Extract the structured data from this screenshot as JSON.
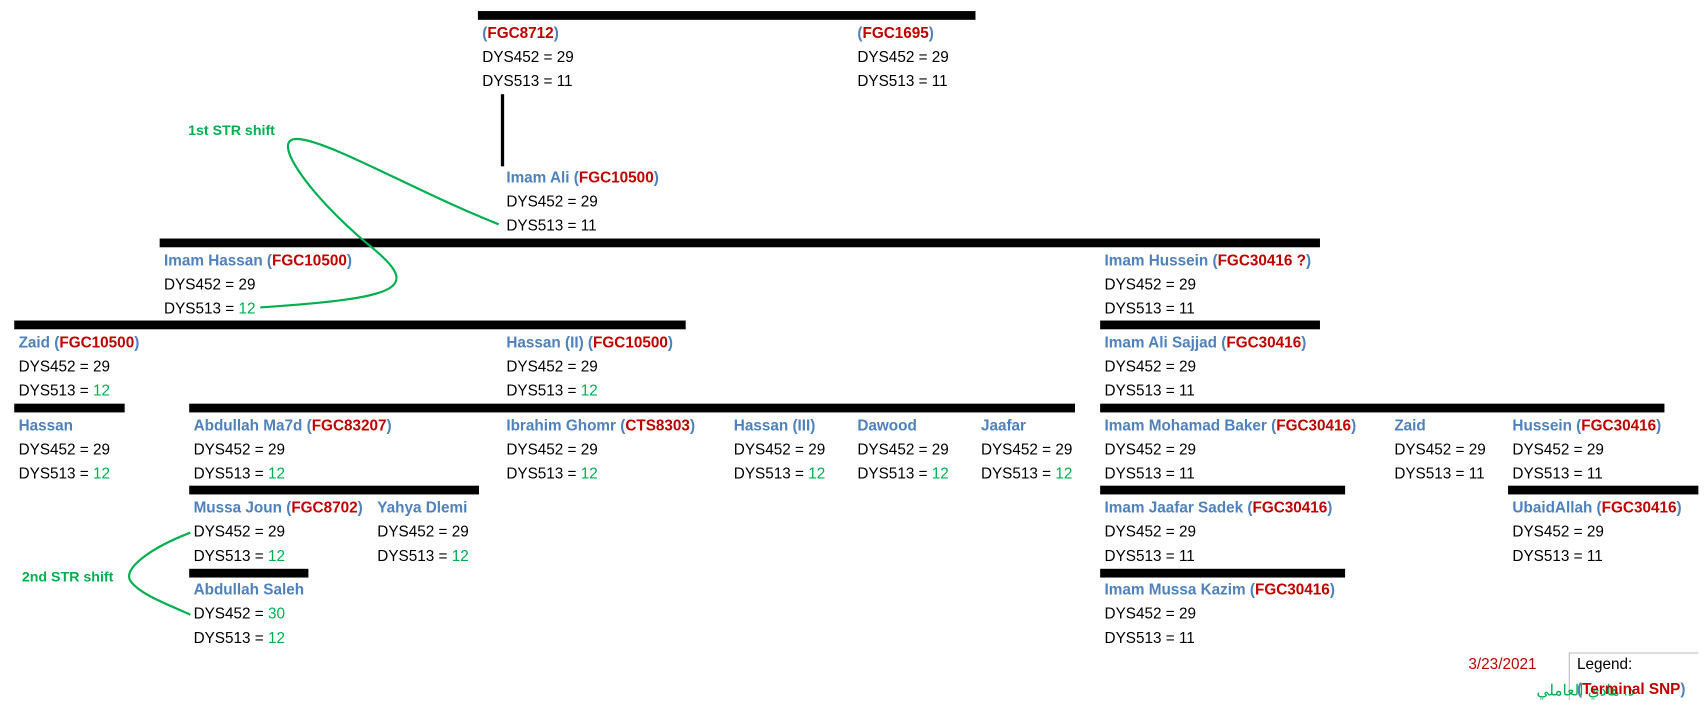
{
  "annotations": [
    "1st STR shift",
    "2nd STR shift"
  ],
  "markers": [
    "DYS452 =",
    "DYS513 ="
  ],
  "colors": {
    "name": "#4f81bd",
    "snp": "#c00000",
    "shifted": "#00b050",
    "value": "#000000"
  },
  "nodes": [
    {
      "label": [
        "(",
        "FGC8712",
        ")"
      ],
      "dys452": 29,
      "dys513": 11,
      "shifted": []
    },
    {
      "label": [
        "(",
        "FGC1695",
        ")"
      ],
      "dys452": 29,
      "dys513": 11,
      "shifted": []
    },
    {
      "label": [
        "Imam Ali (",
        "FGC10500",
        ")"
      ],
      "dys452": 29,
      "dys513": 11,
      "shifted": []
    },
    {
      "label": [
        "Imam Hassan (",
        "FGC10500",
        ")"
      ],
      "dys452": 29,
      "dys513": 12,
      "shifted": [
        "dys513"
      ]
    },
    {
      "label": [
        "Imam Hussein (",
        "FGC30416 ?",
        ")"
      ],
      "dys452": 29,
      "dys513": 11,
      "shifted": []
    },
    {
      "label": [
        "Zaid (",
        "FGC10500",
        ")"
      ],
      "dys452": 29,
      "dys513": 12,
      "shifted": [
        "dys513"
      ]
    },
    {
      "label": [
        "Hassan (II) (",
        "FGC10500",
        ")"
      ],
      "dys452": 29,
      "dys513": 12,
      "shifted": [
        "dys513"
      ]
    },
    {
      "label": [
        "Imam Ali Sajjad (",
        "FGC30416",
        ")"
      ],
      "dys452": 29,
      "dys513": 11,
      "shifted": []
    },
    {
      "label": [
        "Hassan"
      ],
      "dys452": 29,
      "dys513": 12,
      "shifted": [
        "dys513"
      ]
    },
    {
      "label": [
        "Abdullah Ma7d (",
        "FGC83207",
        ")"
      ],
      "dys452": 29,
      "dys513": 12,
      "shifted": [
        "dys513"
      ]
    },
    {
      "label": [
        "Ibrahim Ghomr (",
        "CTS8303",
        ")"
      ],
      "dys452": 29,
      "dys513": 12,
      "shifted": [
        "dys513"
      ]
    },
    {
      "label": [
        "Hassan (III)"
      ],
      "dys452": 29,
      "dys513": 12,
      "shifted": [
        "dys513"
      ]
    },
    {
      "label": [
        "Dawood"
      ],
      "dys452": 29,
      "dys513": 12,
      "shifted": [
        "dys513"
      ]
    },
    {
      "label": [
        "Jaafar"
      ],
      "dys452": 29,
      "dys513": 12,
      "shifted": [
        "dys513"
      ]
    },
    {
      "label": [
        "Imam Mohamad Baker (",
        "FGC30416",
        ")"
      ],
      "dys452": 29,
      "dys513": 11,
      "shifted": []
    },
    {
      "label": [
        "Zaid"
      ],
      "dys452": 29,
      "dys513": 11,
      "shifted": []
    },
    {
      "label": [
        "Hussein (",
        "FGC30416",
        ")"
      ],
      "dys452": 29,
      "dys513": 11,
      "shifted": []
    },
    {
      "label": [
        "Mussa Joun (",
        "FGC8702",
        ")"
      ],
      "dys452": 29,
      "dys513": 12,
      "shifted": [
        "dys513"
      ]
    },
    {
      "label": [
        "Yahya Dlemi"
      ],
      "dys452": 29,
      "dys513": 12,
      "shifted": [
        "dys513"
      ]
    },
    {
      "label": [
        "Imam Jaafar Sadek (",
        "FGC30416",
        ")"
      ],
      "dys452": 29,
      "dys513": 11,
      "shifted": []
    },
    {
      "label": [
        "UbaidAllah (",
        "FGC30416",
        ")"
      ],
      "dys452": 29,
      "dys513": 11,
      "shifted": []
    },
    {
      "label": [
        "Abdullah Saleh"
      ],
      "dys452": 30,
      "dys513": 12,
      "shifted": [
        "dys452",
        "dys513"
      ]
    },
    {
      "label": [
        "Imam Mussa Kazim (",
        "FGC30416",
        ")"
      ],
      "dys452": 29,
      "dys513": 11,
      "shifted": []
    }
  ],
  "date": "3/23/2021",
  "author": "د. هادي العاملي",
  "legend": {
    "title": "Legend:",
    "label": [
      "(",
      "Terminal SNP",
      ")"
    ]
  }
}
